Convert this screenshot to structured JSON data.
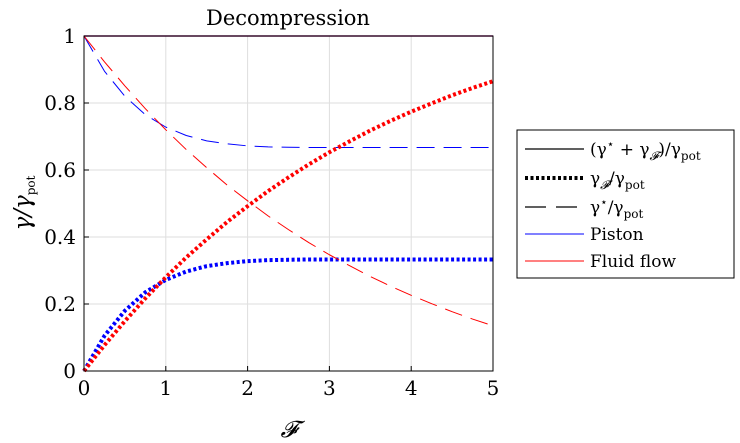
{
  "chart_data": {
    "type": "line",
    "title": "Decompression",
    "xlabel": "𝓕",
    "ylabel": "γ/γpot",
    "xlim": [
      0,
      5
    ],
    "ylim": [
      0,
      1
    ],
    "x_ticks": [
      "0",
      "1",
      "2",
      "3",
      "4",
      "5"
    ],
    "y_ticks": [
      "0",
      "0.2",
      "0.4",
      "0.6",
      "0.8",
      "1"
    ],
    "grid": true,
    "legend_position": "right, outside plot",
    "legend": [
      {
        "label": "(γ⋆ + γ𝓕)/γpot",
        "style": "solid",
        "color": "#000000"
      },
      {
        "label": "γ𝓕/γpot",
        "style": "dotted",
        "color": "#000000"
      },
      {
        "label": "γ⋆/γpot",
        "style": "dashed",
        "color": "#000000"
      },
      {
        "label": "Piston",
        "style": "solid",
        "color": "#0000ff"
      },
      {
        "label": "Fluid flow",
        "style": "solid",
        "color": "#ff0000"
      }
    ],
    "x": [
      0,
      0.25,
      0.5,
      0.75,
      1,
      1.25,
      1.5,
      1.75,
      2,
      2.25,
      2.5,
      2.75,
      3,
      3.25,
      3.5,
      3.75,
      4,
      4.25,
      4.5,
      4.75,
      5
    ],
    "series": [
      {
        "group": "Piston",
        "quantity": "total",
        "style": "solid",
        "color": "#0000ff",
        "values": [
          1,
          1,
          1,
          1,
          1,
          1,
          1,
          1,
          1,
          1,
          1,
          1,
          1,
          1,
          1,
          1,
          1,
          1,
          1,
          1,
          1
        ]
      },
      {
        "group": "Piston",
        "quantity": "flow",
        "style": "dotted",
        "color": "#0000ff",
        "values": [
          0,
          0.105,
          0.18,
          0.235,
          0.272,
          0.297,
          0.313,
          0.322,
          0.328,
          0.331,
          0.332,
          0.333,
          0.333,
          0.333,
          0.333,
          0.333,
          0.333,
          0.333,
          0.333,
          0.333,
          0.333
        ]
      },
      {
        "group": "Piston",
        "quantity": "star",
        "style": "dashed",
        "color": "#0000ff",
        "values": [
          1,
          0.895,
          0.82,
          0.765,
          0.728,
          0.703,
          0.687,
          0.678,
          0.672,
          0.669,
          0.668,
          0.667,
          0.667,
          0.667,
          0.667,
          0.667,
          0.667,
          0.667,
          0.667,
          0.667,
          0.667
        ]
      },
      {
        "group": "Fluid flow",
        "quantity": "total",
        "style": "solid",
        "color": "#ff0000",
        "values": [
          1,
          1,
          1,
          1,
          1,
          1,
          1,
          1,
          1,
          1,
          1,
          1,
          1,
          1,
          1,
          1,
          1,
          1,
          1,
          1,
          1
        ]
      },
      {
        "group": "Fluid flow",
        "quantity": "flow",
        "style": "dotted",
        "color": "#ff0000",
        "values": [
          0,
          0.077,
          0.149,
          0.217,
          0.28,
          0.339,
          0.393,
          0.445,
          0.492,
          0.537,
          0.578,
          0.617,
          0.653,
          0.686,
          0.718,
          0.747,
          0.774,
          0.799,
          0.823,
          0.845,
          0.865
        ]
      },
      {
        "group": "Fluid flow",
        "quantity": "star",
        "style": "dashed",
        "color": "#ff0000",
        "values": [
          1,
          0.923,
          0.851,
          0.783,
          0.72,
          0.661,
          0.607,
          0.555,
          0.508,
          0.463,
          0.422,
          0.383,
          0.347,
          0.314,
          0.282,
          0.253,
          0.226,
          0.201,
          0.177,
          0.155,
          0.135
        ]
      }
    ]
  }
}
